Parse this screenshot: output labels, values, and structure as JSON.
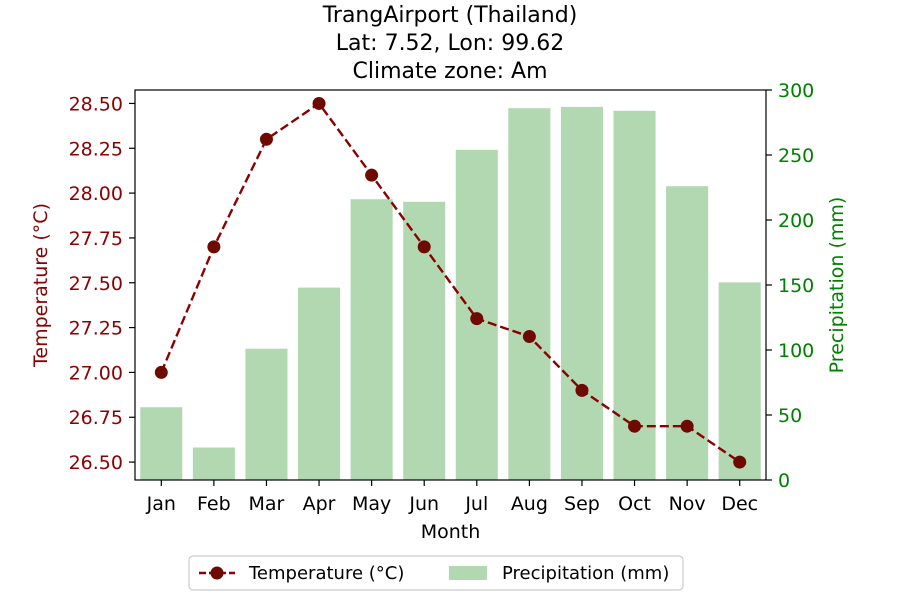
{
  "chart_data": {
    "type": "bar+line",
    "title_lines": [
      "TrangAirport (Thailand)",
      "Lat: 7.52, Lon: 99.62",
      "Climate zone: Am"
    ],
    "xlabel": "Month",
    "categories": [
      "Jan",
      "Feb",
      "Mar",
      "Apr",
      "May",
      "Jun",
      "Jul",
      "Aug",
      "Sep",
      "Oct",
      "Nov",
      "Dec"
    ],
    "left_axis": {
      "label": "Temperature (°C)",
      "color": "#8b0000",
      "ylim": [
        26.4,
        28.575
      ],
      "ticks": [
        26.5,
        26.75,
        27.0,
        27.25,
        27.5,
        27.75,
        28.0,
        28.25,
        28.5
      ],
      "tick_labels": [
        "26.50",
        "26.75",
        "27.00",
        "27.25",
        "27.50",
        "27.75",
        "28.00",
        "28.25",
        "28.50"
      ]
    },
    "right_axis": {
      "label": "Precipitation (mm)",
      "color": "#008000",
      "ylim": [
        0,
        300
      ],
      "ticks": [
        0,
        50,
        100,
        150,
        200,
        250,
        300
      ],
      "tick_labels": [
        "0",
        "50",
        "100",
        "150",
        "200",
        "250",
        "300"
      ]
    },
    "series": [
      {
        "name": "Temperature (°C)",
        "kind": "line",
        "axis": "left",
        "style": "dashed with circle markers",
        "color": "#8b0000",
        "marker_color": "#6e0a00",
        "values": [
          27.0,
          27.7,
          28.3,
          28.5,
          28.1,
          27.7,
          27.3,
          27.2,
          26.9,
          26.7,
          26.7,
          26.5
        ]
      },
      {
        "name": "Precipitation (mm)",
        "kind": "bar",
        "axis": "right",
        "color": "#b2d8b2",
        "values": [
          56,
          25,
          101,
          148,
          216,
          214,
          254,
          286,
          287,
          284,
          226,
          152
        ]
      }
    ],
    "legend": {
      "placement": "bottom-center",
      "entries": [
        "Temperature (°C)",
        "Precipitation (mm)"
      ]
    },
    "grid": false
  }
}
